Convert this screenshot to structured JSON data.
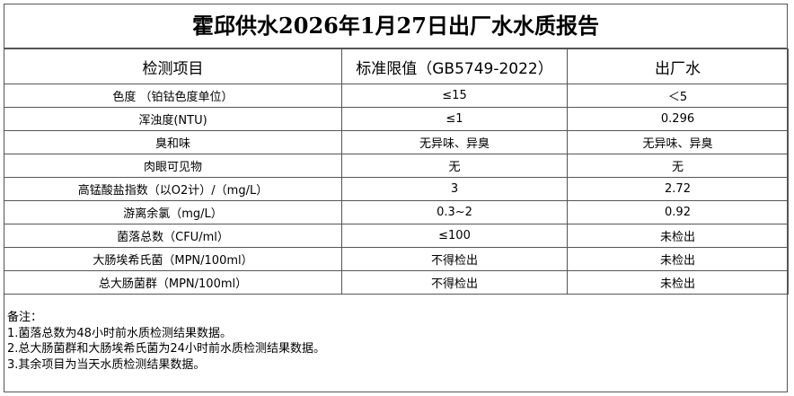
{
  "title": "霍邱供水2026年1月27日出厂水水质报告",
  "headers": [
    "检测项目",
    "标准限值（GB5749-2022）",
    "出厂水"
  ],
  "rows": [
    [
      "色度 （铂钴色度单位）",
      "≤15",
      "＜5"
    ],
    [
      "浑浊度(NTU)",
      "≤1",
      "0.296"
    ],
    [
      "臭和味",
      "无异味、异臭",
      "无异味、异臭"
    ],
    [
      "肉眼可见物",
      "无",
      "无"
    ],
    [
      "高锰酸盐指数（以O2计）/（mg/L）",
      "3",
      "2.72"
    ],
    [
      "游离余氯（mg/L）",
      "0.3~2",
      "0.92"
    ],
    [
      "菌落总数（CFU/ml）",
      "≤100",
      "未检出"
    ],
    [
      "大肠埃希氏菌（MPN/100ml）",
      "不得检出",
      "未检出"
    ],
    [
      "总大肠菌群（MPN/100ml）",
      "不得检出",
      "未检出"
    ]
  ],
  "notes": [
    "备注：",
    "1.菌落总数为48小时前水质检测结果数据。",
    "2.总大肠菌群和大肠埃希氏菌为24小时前水质检测结果数据。",
    "3.其余项目为当天水质检测结果数据。"
  ]
}
